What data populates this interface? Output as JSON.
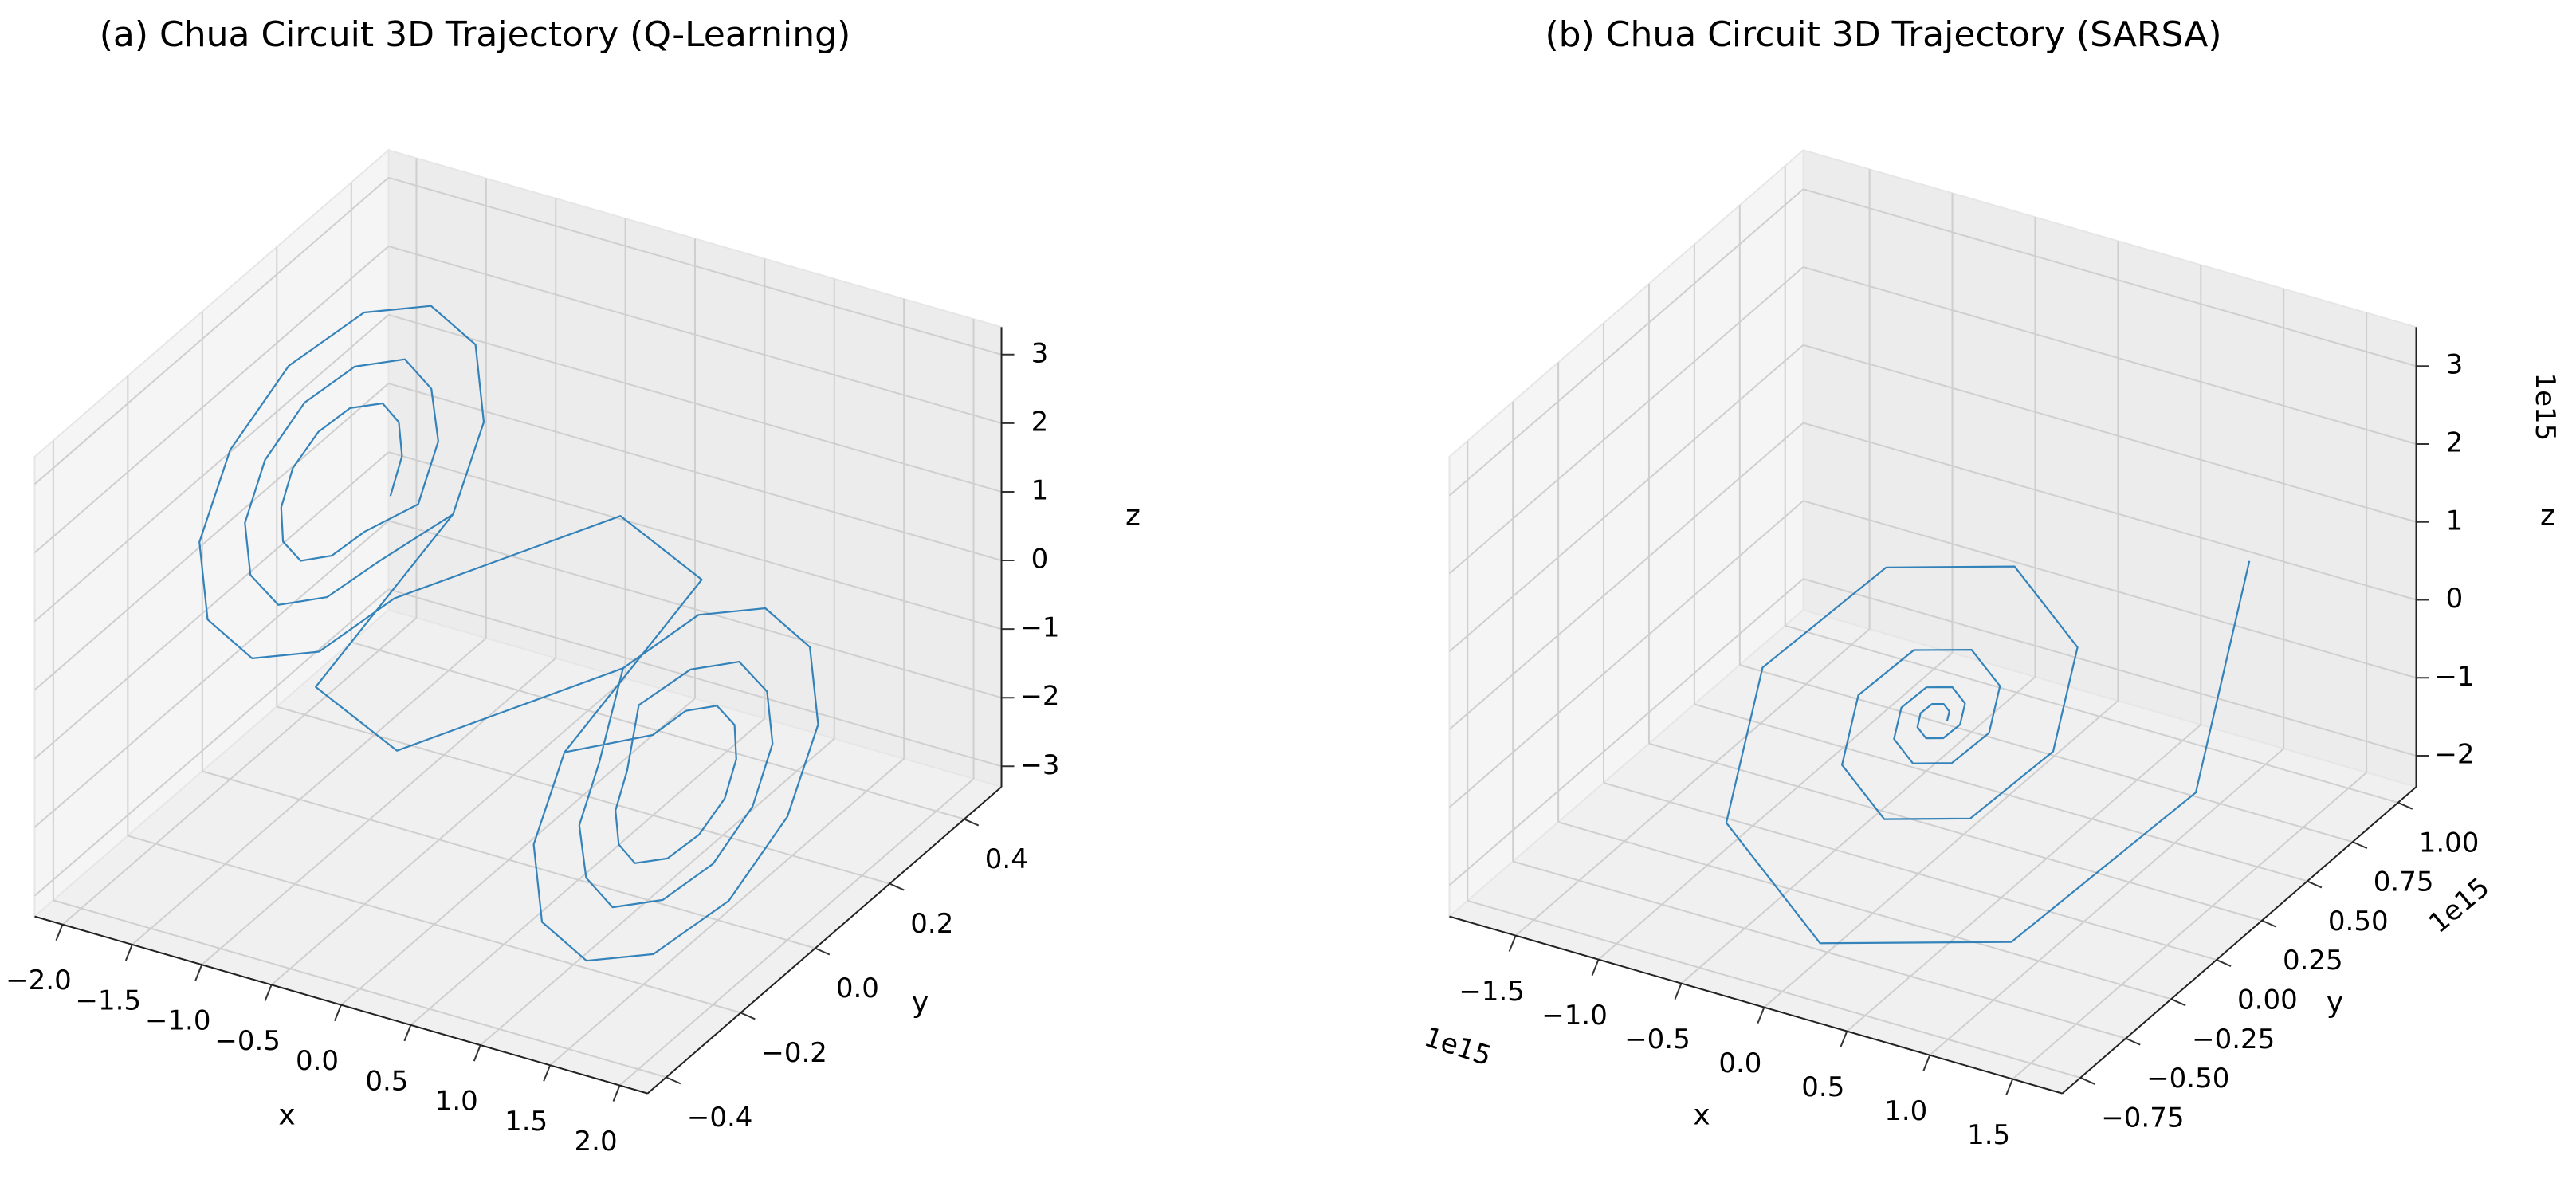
{
  "chart_data": [
    {
      "type": "line3d",
      "title": "(a)  Chua Circuit 3D Trajectory (Q-Learning)",
      "xlabel": "x",
      "ylabel": "y",
      "zlabel": "z",
      "xlim": [
        -2.2,
        2.2
      ],
      "ylim": [
        -0.45,
        0.5
      ],
      "zlim": [
        -3.3,
        3.4
      ],
      "xticks": [
        {
          "value": -2,
          "label": "−2.0"
        },
        {
          "value": -1.5,
          "label": "−1.5"
        },
        {
          "value": -1,
          "label": "−1.0"
        },
        {
          "value": -0.5,
          "label": "−0.5"
        },
        {
          "value": 0,
          "label": "0.0"
        },
        {
          "value": 0.5,
          "label": "0.5"
        },
        {
          "value": 1,
          "label": "1.0"
        },
        {
          "value": 1.5,
          "label": "1.5"
        },
        {
          "value": 2,
          "label": "2.0"
        }
      ],
      "yticks": [
        {
          "value": -0.4,
          "label": "−0.4"
        },
        {
          "value": -0.2,
          "label": "−0.2"
        },
        {
          "value": 0,
          "label": "0.0"
        },
        {
          "value": 0.2,
          "label": "0.2"
        },
        {
          "value": 0.4,
          "label": "0.4"
        }
      ],
      "zticks": [
        {
          "value": -3,
          "label": "−3"
        },
        {
          "value": -2,
          "label": "−2"
        },
        {
          "value": -1,
          "label": "−1"
        },
        0,
        1,
        2,
        3
      ],
      "grid": true,
      "series": [
        {
          "color": "#1f77b4",
          "x": [
            -0.85,
            -0.9,
            -1.03,
            -1.2,
            -1.38,
            -1.5,
            -1.55,
            -1.5,
            -1.38,
            -1.2,
            -1.03,
            -0.9,
            -0.65,
            -0.72,
            -0.93,
            -1.2,
            -1.48,
            -1.68,
            -1.75,
            -1.68,
            -1.48,
            -1.2,
            -0.93,
            -0.72,
            -0.4,
            -0.5,
            -0.8,
            -1.2,
            -1.6,
            -1.9,
            -2.0,
            -1.9,
            -1.6,
            -1.2,
            -0.8,
            -0.5,
            0.0,
            0.45,
            0.4,
            0.5,
            0.8,
            1.2,
            1.6,
            1.9,
            2.0,
            1.9,
            1.6,
            1.2,
            0.8,
            0.5,
            0.65,
            0.72,
            0.93,
            1.2,
            1.48,
            1.68,
            1.75,
            1.68,
            1.48,
            1.2,
            0.93,
            0.72,
            0.85,
            0.9,
            1.03,
            1.2,
            1.38,
            1.5,
            1.55,
            1.5,
            1.38,
            1.2,
            1.03,
            0.9,
            0.4,
            0.5,
            0.8,
            1.2,
            1.6,
            1.9,
            2.0,
            1.9,
            1.6,
            1.2,
            0.8,
            0.5,
            0.0,
            -0.45,
            -0.4,
            -0.5,
            -0.8,
            -1.2,
            -1.6,
            -1.9,
            -2.0,
            -1.9,
            -1.6,
            -1.2,
            -0.8,
            -0.5
          ],
          "y": [
            0,
            0.05,
            0.09,
            0.11,
            0.09,
            0.05,
            0,
            -0.05,
            -0.09,
            -0.11,
            -0.09,
            -0.05,
            0,
            0.08,
            0.14,
            0.17,
            0.14,
            0.08,
            0,
            -0.08,
            -0.14,
            -0.17,
            -0.14,
            -0.08,
            0,
            0.12,
            0.21,
            0.24,
            0.21,
            0.12,
            0,
            -0.12,
            -0.21,
            -0.24,
            -0.21,
            -0.12,
            0.3,
            0.35,
            0,
            -0.12,
            -0.21,
            -0.24,
            -0.21,
            -0.12,
            0,
            0.12,
            0.21,
            0.24,
            0.21,
            0.12,
            0,
            -0.08,
            -0.14,
            -0.17,
            -0.14,
            -0.08,
            0,
            0.08,
            0.14,
            0.17,
            0.14,
            0.08,
            0,
            -0.05,
            -0.09,
            -0.11,
            -0.09,
            -0.05,
            0,
            0.05,
            0.09,
            0.11,
            0.09,
            0.05,
            0,
            -0.12,
            -0.21,
            -0.24,
            -0.21,
            -0.12,
            0,
            0.12,
            0.21,
            0.24,
            0.21,
            0.12,
            -0.3,
            -0.35,
            0,
            0.12,
            0.21,
            0.24,
            0.21,
            0.12,
            0,
            -0.12,
            -0.21,
            -0.24,
            -0.21,
            -0.12
          ],
          "z": [
            1.5,
            1.82,
            2.05,
            2.13,
            2.05,
            1.82,
            1.5,
            1.19,
            0.95,
            0.87,
            0.95,
            1.19,
            1.5,
            2.0,
            2.36,
            2.49,
            2.36,
            2.0,
            1.5,
            1.0,
            0.64,
            0.51,
            0.64,
            1.0,
            1.5,
            2.22,
            2.75,
            2.94,
            2.75,
            2.22,
            1.5,
            0.78,
            0.25,
            0.06,
            0.25,
            0.78,
            0.3,
            -0.6,
            -1.5,
            -2.22,
            -2.75,
            -2.94,
            -2.75,
            -2.22,
            -1.5,
            -0.78,
            -0.25,
            -0.06,
            -0.25,
            -0.78,
            -1.5,
            -2.0,
            -2.36,
            -2.49,
            -2.36,
            -2.0,
            -1.5,
            -1.0,
            -0.64,
            -0.51,
            -0.64,
            -1.0,
            -1.5,
            -1.82,
            -2.05,
            -2.13,
            -2.05,
            -1.82,
            -1.5,
            -1.19,
            -0.95,
            -0.87,
            -0.95,
            -1.19,
            -1.5,
            -2.22,
            -2.75,
            -2.94,
            -2.75,
            -2.22,
            -1.5,
            -0.78,
            -0.25,
            -0.06,
            -0.25,
            -0.78,
            -0.3,
            0.6,
            1.5,
            2.22,
            2.75,
            2.94,
            2.75,
            2.22,
            1.5,
            0.78,
            0.25,
            0.06,
            0.25,
            0.78
          ]
        }
      ]
    },
    {
      "type": "line3d",
      "title": "(b)  Chua Circuit 3D Trajectory (SARSA)",
      "xlabel": "x",
      "ylabel": "y",
      "zlabel": "z",
      "offset_labels": {
        "x": "1e15",
        "y": "1e15",
        "z": "1e15"
      },
      "xlim": [
        -1900000000000000.0,
        1800000000000000.0
      ],
      "ylim": [
        -850000000000000.0,
        1100000000000000.0
      ],
      "zlim": [
        -2400000000000000.0,
        3500000000000000.0
      ],
      "xticks": [
        {
          "value": -1500000000000000.0,
          "label": "−1.5"
        },
        {
          "value": -1000000000000000.0,
          "label": "−1.0"
        },
        {
          "value": -500000000000000.0,
          "label": "−0.5"
        },
        {
          "value": 0,
          "label": "0.0"
        },
        {
          "value": 500000000000000.0,
          "label": "0.5"
        },
        {
          "value": 1000000000000000.0,
          "label": "1.0"
        },
        {
          "value": 1500000000000000.0,
          "label": "1.5"
        }
      ],
      "yticks": [
        {
          "value": -750000000000000.0,
          "label": "−0.75"
        },
        {
          "value": -500000000000000.0,
          "label": "−0.50"
        },
        {
          "value": -250000000000000.0,
          "label": "−0.25"
        },
        {
          "value": 0,
          "label": "0.00"
        },
        {
          "value": 250000000000000.0,
          "label": "0.25"
        },
        {
          "value": 500000000000000.0,
          "label": "0.50"
        },
        {
          "value": 750000000000000.0,
          "label": "0.75"
        },
        {
          "value": 1000000000000000.0,
          "label": "1.00"
        }
      ],
      "zticks": [
        {
          "value": -2000000000000000.0,
          "label": "−2"
        },
        {
          "value": -1000000000000000.0,
          "label": "−1"
        },
        {
          "value": 0,
          "label": "0"
        },
        {
          "value": 1000000000000000.0,
          "label": "1"
        },
        {
          "value": 2000000000000000.0,
          "label": "2"
        },
        {
          "value": 3000000000000000.0,
          "label": "3"
        }
      ],
      "grid": true,
      "series": [
        {
          "color": "#1f77b4",
          "x": [
            64000000000000.0,
            50000000000000.0,
            0,
            -61000000000000.0,
            -96000000000000.0,
            -75000000000000.0,
            0,
            91000000000000.0,
            142000000000000.0,
            111000000000000.0,
            0,
            -136000000000000.0,
            -212000000000000.0,
            -166000000000000.0,
            0,
            203000000000000.0,
            317000000000000.0,
            247000000000000.0,
            0,
            -302000000000000.0,
            -472000000000000.0,
            -369000000000000.0,
            0,
            450000000000000.0,
            704000000000000.0,
            550000000000000.0,
            0,
            -672000000000000.0,
            -1050000000000000.0,
            -820000000000000.0,
            0,
            1001000000000000.0,
            1565000000000000.0,
            1220000000000000.0
          ],
          "y": [
            100000000000000.0,
            125000000000000.0,
            139000000000000.0,
            131000000000000.0,
            100000000000000.0,
            63000000000000.0,
            42000000000000.0,
            54000000000000.0,
            100000000000000.0,
            156000000000000.0,
            187000000000000.0,
            168000000000000.0,
            100000000000000.0,
            17000000000000.0,
            -30000000000000.0,
            -1000000000000.0,
            100000000000000.0,
            224000000000000.0,
            293000000000000.0,
            251000000000000.0,
            100000000000000.0,
            -84000000000000.0,
            -188000000000000.0,
            -125000000000000.0,
            100000000000000.0,
            375000000000000.0,
            530000000000000.0,
            436000000000000.0,
            100000000000000.0,
            -310000000000000.0,
            -541000000000000.0,
            -401000000000000.0,
            100000000000000.0,
            710000000000000.0
          ],
          "z": [
            -600000000000000.0,
            -538000000000000.0,
            -502000000000000.0,
            -524000000000000.0,
            -600000000000000.0,
            -693000000000000.0,
            -746000000000000.0,
            -714000000000000.0,
            -600000000000000.0,
            -461000000000000.0,
            -383000000000000.0,
            -430000000000000.0,
            -600000000000000.0,
            -807000000000000.0,
            -924000000000000.0,
            -853000000000000.0,
            -600000000000000.0,
            -291000000000000.0,
            -117000000000000.0,
            -222000000000000.0,
            -600000000000000.0,
            -1061000000000000.0,
            -1321000000000000.0,
            -1163000000000000.0,
            -600000000000000.0,
            87000000000000.0,
            474000000000000.0,
            239000000000000.0,
            -600000000000000.0,
            -1625000000000000.0,
            -2202000000000000.0,
            -1852000000000000.0,
            -600000000000000.0,
            930000000000000.0
          ]
        }
      ]
    }
  ]
}
